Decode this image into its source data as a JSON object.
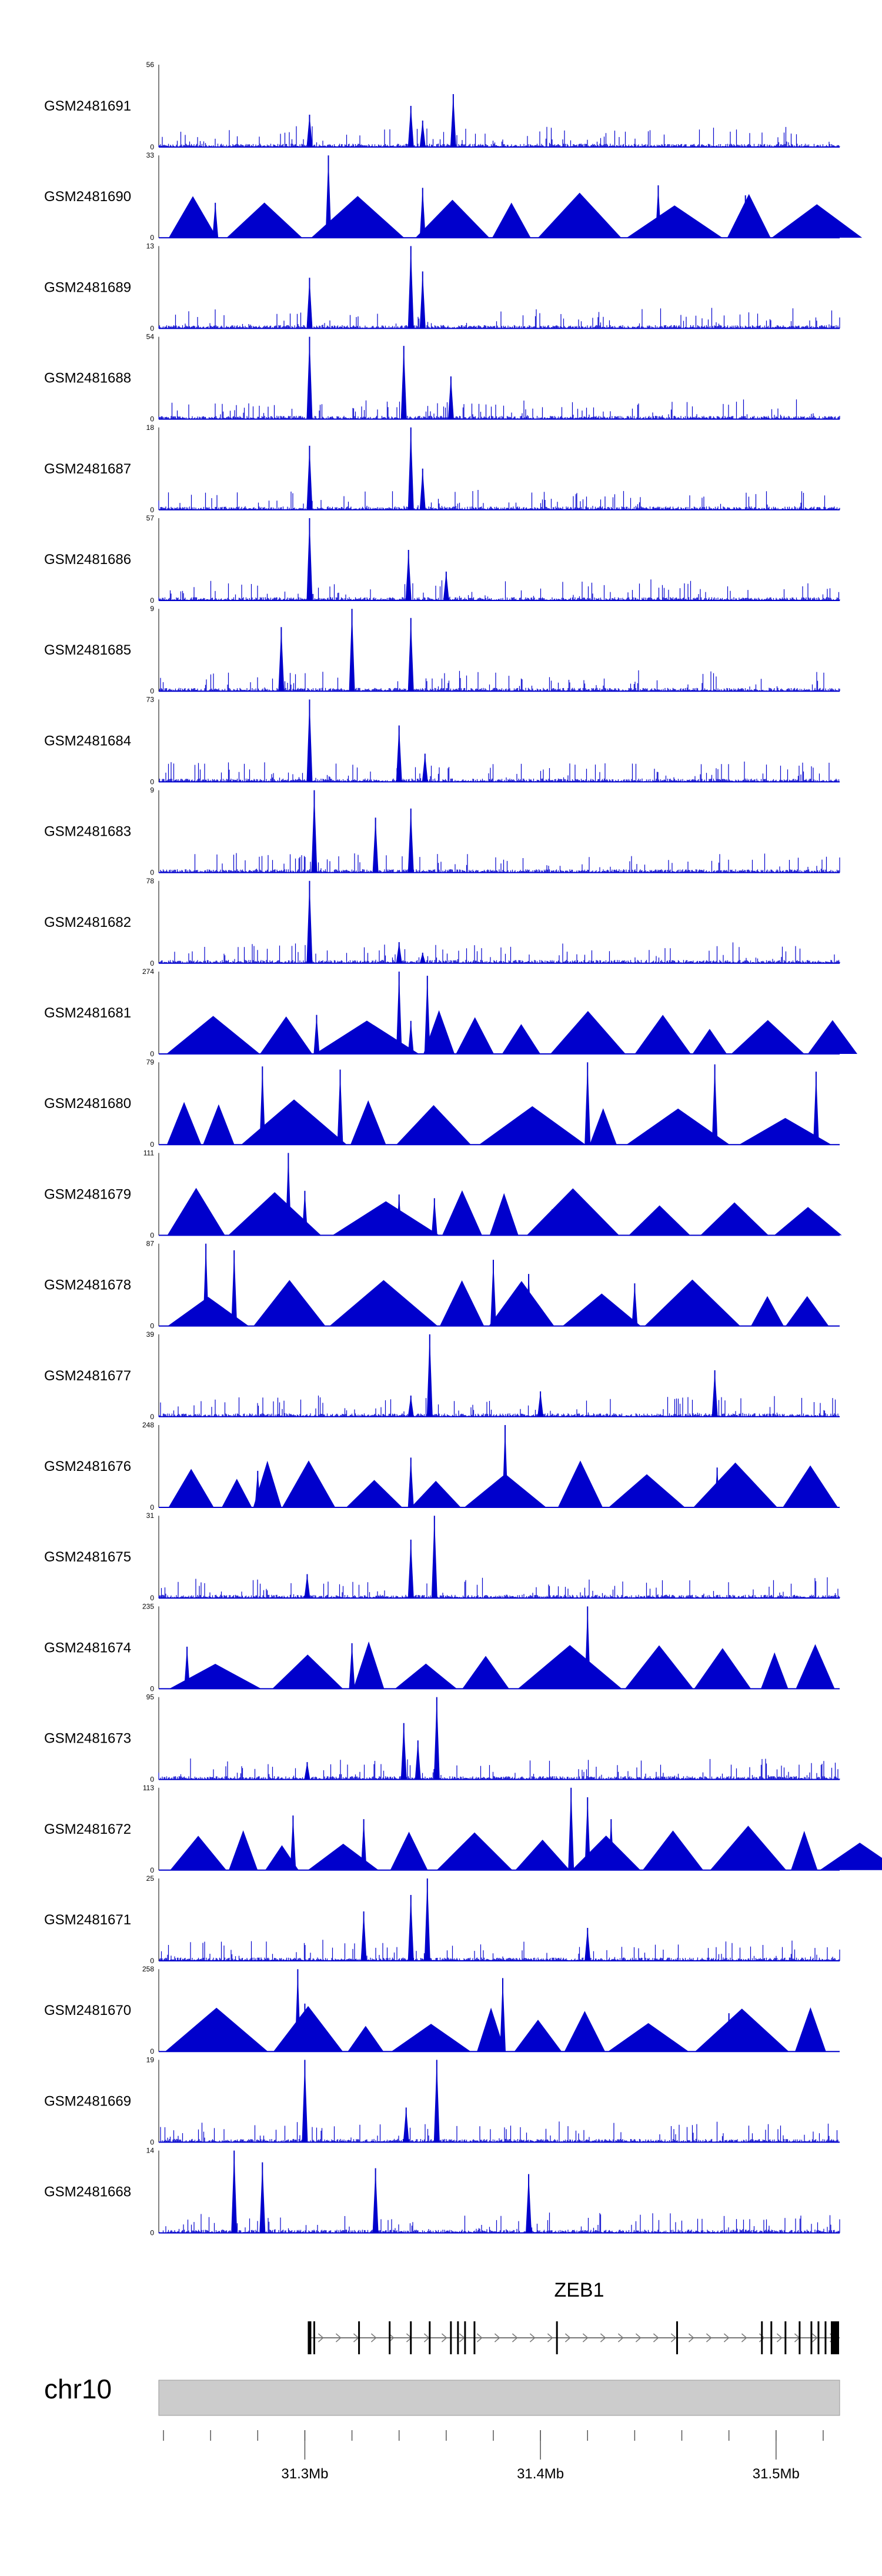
{
  "chart_data": {
    "type": "area",
    "title": "",
    "xlabel": "",
    "ylabel": "",
    "chromosome": "chr10",
    "gene": "ZEB1",
    "xlim_mb": [
      31.238,
      31.527
    ],
    "x_ticks": [
      {
        "mb": 31.3,
        "label": "31.3Mb"
      },
      {
        "mb": 31.4,
        "label": "31.4Mb"
      },
      {
        "mb": 31.5,
        "label": "31.5Mb"
      }
    ],
    "gene_model": {
      "start_mb": 31.302,
      "end_mb": 31.527,
      "strand": "+",
      "exons_mb": [
        31.302,
        31.304,
        31.323,
        31.336,
        31.345,
        31.353,
        31.362,
        31.365,
        31.368,
        31.372,
        31.407,
        31.458,
        31.494,
        31.498,
        31.504,
        31.51,
        31.515,
        31.518,
        31.521,
        31.525
      ]
    },
    "series": [
      {
        "name": "GSM2481691",
        "ymax": 56,
        "style": "spiky",
        "peaks": [
          [
            31.363,
            36
          ],
          [
            31.345,
            28
          ],
          [
            31.302,
            22
          ],
          [
            31.35,
            18
          ]
        ]
      },
      {
        "name": "GSM2481690",
        "ymax": 33,
        "style": "tri",
        "peaks": [
          [
            31.31,
            33
          ],
          [
            31.45,
            21
          ],
          [
            31.487,
            17
          ],
          [
            31.35,
            20
          ],
          [
            31.262,
            14
          ]
        ]
      },
      {
        "name": "GSM2481689",
        "ymax": 13,
        "style": "spiky",
        "peaks": [
          [
            31.345,
            13
          ],
          [
            31.35,
            9
          ],
          [
            31.302,
            8
          ]
        ]
      },
      {
        "name": "GSM2481688",
        "ymax": 54,
        "style": "spiky",
        "peaks": [
          [
            31.302,
            54
          ],
          [
            31.342,
            48
          ],
          [
            31.362,
            28
          ]
        ]
      },
      {
        "name": "GSM2481687",
        "ymax": 18,
        "style": "spiky",
        "peaks": [
          [
            31.345,
            18
          ],
          [
            31.302,
            14
          ],
          [
            31.35,
            9
          ]
        ]
      },
      {
        "name": "GSM2481686",
        "ymax": 57,
        "style": "spiky",
        "peaks": [
          [
            31.302,
            57
          ],
          [
            31.344,
            35
          ],
          [
            31.36,
            20
          ]
        ]
      },
      {
        "name": "GSM2481685",
        "ymax": 9,
        "style": "spiky",
        "peaks": [
          [
            31.32,
            9
          ],
          [
            31.345,
            8
          ],
          [
            31.29,
            7
          ]
        ]
      },
      {
        "name": "GSM2481684",
        "ymax": 73,
        "style": "spiky",
        "peaks": [
          [
            31.302,
            73
          ],
          [
            31.34,
            50
          ],
          [
            31.351,
            25
          ]
        ]
      },
      {
        "name": "GSM2481683",
        "ymax": 9,
        "style": "spiky",
        "peaks": [
          [
            31.304,
            9
          ],
          [
            31.345,
            7
          ],
          [
            31.33,
            6
          ]
        ]
      },
      {
        "name": "GSM2481682",
        "ymax": 78,
        "style": "spiky",
        "peaks": [
          [
            31.302,
            78
          ],
          [
            31.34,
            20
          ],
          [
            31.35,
            10
          ]
        ]
      },
      {
        "name": "GSM2481681",
        "ymax": 274,
        "style": "tri",
        "peaks": [
          [
            31.34,
            274
          ],
          [
            31.352,
            260
          ],
          [
            31.305,
            130
          ],
          [
            31.345,
            110
          ]
        ]
      },
      {
        "name": "GSM2481680",
        "ymax": 79,
        "style": "tri",
        "peaks": [
          [
            31.42,
            79
          ],
          [
            31.282,
            75
          ],
          [
            31.315,
            72
          ],
          [
            31.517,
            70
          ],
          [
            31.474,
            77
          ]
        ]
      },
      {
        "name": "GSM2481679",
        "ymax": 111,
        "style": "tri",
        "peaks": [
          [
            31.293,
            111
          ],
          [
            31.3,
            60
          ],
          [
            31.34,
            55
          ],
          [
            31.355,
            50
          ],
          [
            31.405,
            35
          ]
        ]
      },
      {
        "name": "GSM2481678",
        "ymax": 87,
        "style": "tri",
        "peaks": [
          [
            31.258,
            87
          ],
          [
            31.27,
            80
          ],
          [
            31.38,
            70
          ],
          [
            31.395,
            55
          ],
          [
            31.44,
            45
          ]
        ]
      },
      {
        "name": "GSM2481677",
        "ymax": 39,
        "style": "spiky",
        "peaks": [
          [
            31.353,
            39
          ],
          [
            31.474,
            22
          ],
          [
            31.4,
            12
          ],
          [
            31.345,
            10
          ]
        ]
      },
      {
        "name": "GSM2481676",
        "ymax": 248,
        "style": "tri",
        "peaks": [
          [
            31.385,
            248
          ],
          [
            31.345,
            150
          ],
          [
            31.475,
            120
          ],
          [
            31.28,
            110
          ]
        ]
      },
      {
        "name": "GSM2481675",
        "ymax": 31,
        "style": "spiky",
        "peaks": [
          [
            31.355,
            31
          ],
          [
            31.345,
            22
          ],
          [
            31.301,
            9
          ]
        ]
      },
      {
        "name": "GSM2481674",
        "ymax": 235,
        "style": "tri",
        "peaks": [
          [
            31.42,
            235
          ],
          [
            31.32,
            130
          ],
          [
            31.25,
            120
          ]
        ]
      },
      {
        "name": "GSM2481673",
        "ymax": 95,
        "style": "spiky",
        "peaks": [
          [
            31.356,
            95
          ],
          [
            31.342,
            65
          ],
          [
            31.348,
            45
          ],
          [
            31.301,
            20
          ]
        ]
      },
      {
        "name": "GSM2481672",
        "ymax": 113,
        "style": "tri",
        "peaks": [
          [
            31.413,
            113
          ],
          [
            31.42,
            100
          ],
          [
            31.295,
            75
          ],
          [
            31.325,
            70
          ],
          [
            31.43,
            70
          ]
        ]
      },
      {
        "name": "GSM2481671",
        "ymax": 25,
        "style": "spiky",
        "peaks": [
          [
            31.352,
            25
          ],
          [
            31.345,
            20
          ],
          [
            31.325,
            15
          ],
          [
            31.42,
            10
          ]
        ]
      },
      {
        "name": "GSM2481670",
        "ymax": 258,
        "style": "tri",
        "peaks": [
          [
            31.297,
            258
          ],
          [
            31.384,
            230
          ],
          [
            31.3,
            150
          ],
          [
            31.48,
            120
          ]
        ]
      },
      {
        "name": "GSM2481669",
        "ymax": 19,
        "style": "spiky",
        "peaks": [
          [
            31.3,
            19
          ],
          [
            31.356,
            19
          ],
          [
            31.343,
            8
          ]
        ]
      },
      {
        "name": "GSM2481668",
        "ymax": 14,
        "style": "spiky",
        "peaks": [
          [
            31.27,
            14
          ],
          [
            31.282,
            12
          ],
          [
            31.33,
            11
          ],
          [
            31.395,
            10
          ]
        ]
      }
    ]
  }
}
